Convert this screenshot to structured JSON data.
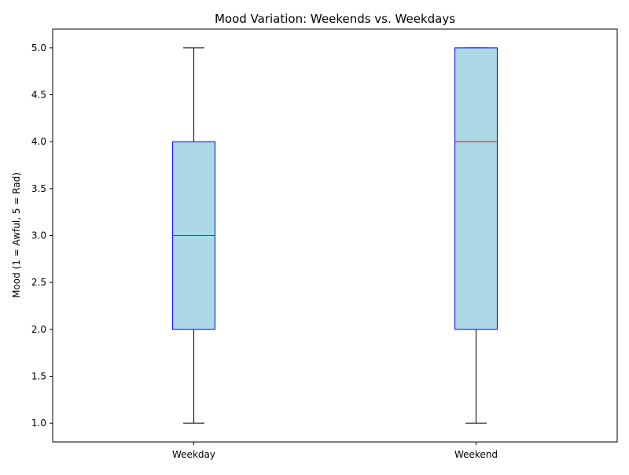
{
  "chart_data": {
    "type": "box",
    "title": "Mood Variation: Weekends vs. Weekdays",
    "xlabel": "",
    "ylabel": "Mood (1 = Awful, 5 = Rad)",
    "ylim": [
      0.8,
      5.2
    ],
    "yticks": [
      "1.0",
      "1.5",
      "2.0",
      "2.5",
      "3.0",
      "3.5",
      "4.0",
      "4.5",
      "5.0"
    ],
    "categories": [
      "Weekday",
      "Weekend"
    ],
    "boxes": [
      {
        "label": "Weekday",
        "min": 1.0,
        "q1": 2.0,
        "median": 3.0,
        "q3": 4.0,
        "max": 5.0
      },
      {
        "label": "Weekend",
        "min": 1.0,
        "q1": 2.0,
        "median": 4.0,
        "q3": 5.0,
        "max": 5.0
      }
    ],
    "grid": false,
    "colors": {
      "box_fill": "#add8e6",
      "box_edge": "#0000ff",
      "median": "#ff0000",
      "whisker": "#000000"
    }
  }
}
